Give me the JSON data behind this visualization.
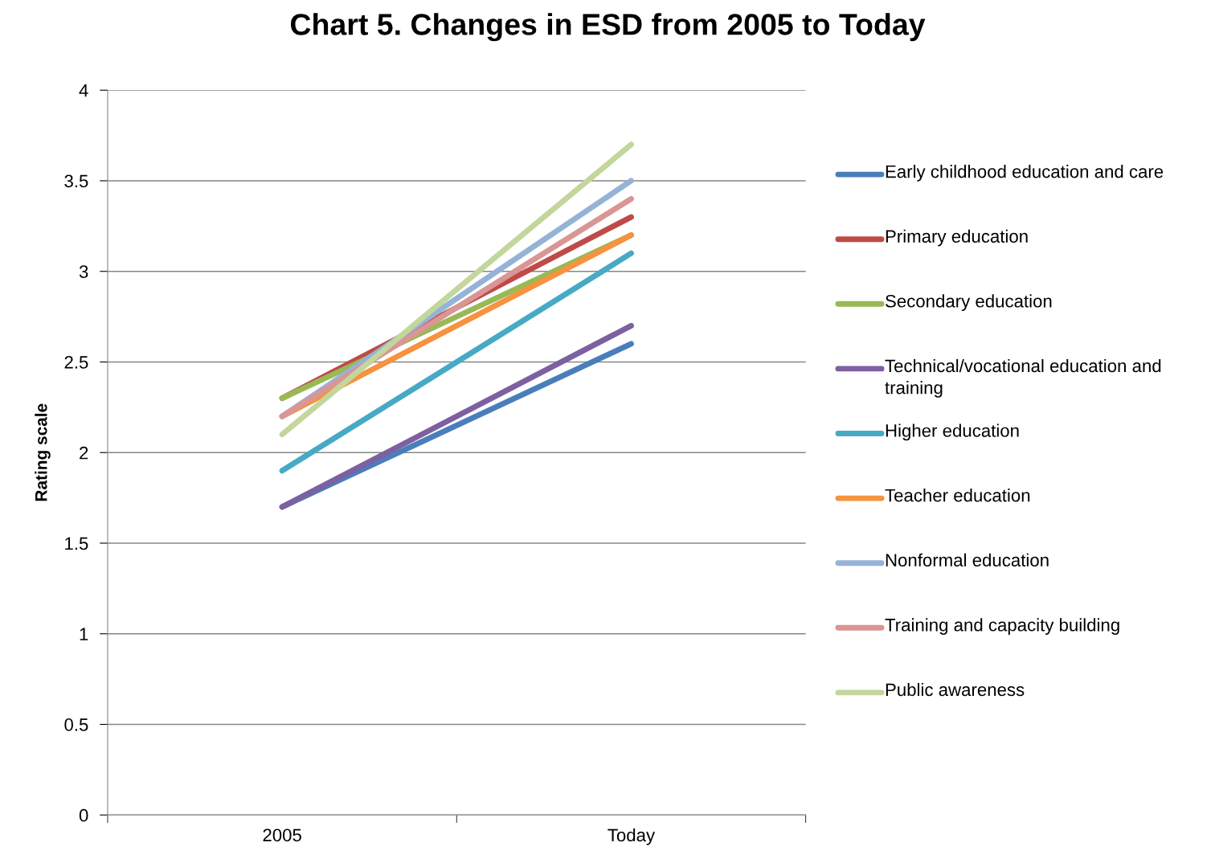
{
  "chart_data": {
    "type": "line",
    "title": "Chart 5. Changes in ESD from 2005 to Today",
    "ylabel": "Rating scale",
    "categories": [
      "2005",
      "Today"
    ],
    "series": [
      {
        "name": "Early childhood education and care",
        "color": "#4a7ebb",
        "values": [
          1.7,
          2.6
        ]
      },
      {
        "name": "Primary education",
        "color": "#be4b48",
        "values": [
          2.3,
          3.3
        ]
      },
      {
        "name": "Secondary education",
        "color": "#98b954",
        "values": [
          2.3,
          3.2
        ]
      },
      {
        "name": "Technical/vocational education and training",
        "color": "#7d60a0",
        "values": [
          1.7,
          2.7
        ]
      },
      {
        "name": "Higher education",
        "color": "#46aac5",
        "values": [
          1.9,
          3.1
        ]
      },
      {
        "name": "Teacher education",
        "color": "#f69240",
        "values": [
          2.2,
          3.2
        ]
      },
      {
        "name": "Nonformal education",
        "color": "#95b3d7",
        "values": [
          2.2,
          3.5
        ]
      },
      {
        "name": "Training and capacity building",
        "color": "#d99694",
        "values": [
          2.2,
          3.4
        ]
      },
      {
        "name": "Public awareness",
        "color": "#c3d69b",
        "values": [
          2.1,
          3.7
        ]
      }
    ],
    "ylim": [
      0,
      4
    ],
    "yticks": [
      0,
      0.5,
      1,
      1.5,
      2,
      2.5,
      3,
      3.5,
      4
    ],
    "grid": "y",
    "legend": "right",
    "marker": "none",
    "line_style": "solid"
  }
}
